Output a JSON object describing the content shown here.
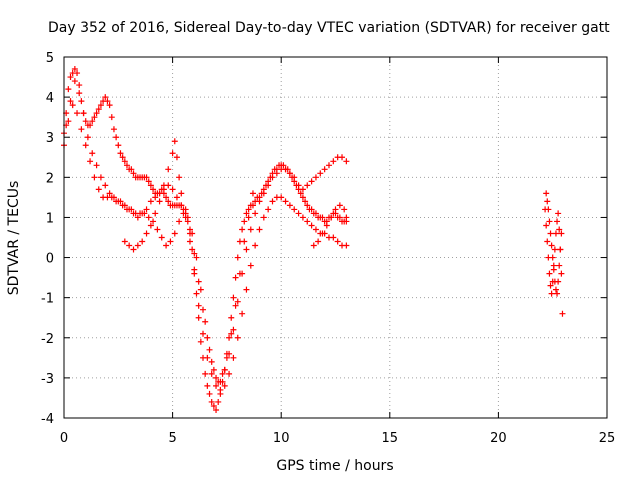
{
  "chart_data": {
    "type": "scatter",
    "title": "Day 352 of 2016, Sidereal Day-to-day VTEC variation (SDTVAR) for receiver gatt",
    "xlabel": "GPS time / hours",
    "ylabel": "SDTVAR / TECUs",
    "xlim": [
      0,
      25
    ],
    "ylim": [
      -4,
      5
    ],
    "xticks": [
      "0",
      "5",
      "10",
      "15",
      "20",
      "25"
    ],
    "yticks": [
      "-4",
      "-3",
      "-2",
      "-1",
      "0",
      "1",
      "2",
      "3",
      "4",
      "5"
    ],
    "grid": true,
    "marker": "plus",
    "color": "#ff0000",
    "series": [
      {
        "x": [
          0.0,
          0.1,
          0.2,
          0.3,
          0.4,
          0.5,
          0.6,
          0.7,
          0.8,
          0.9,
          1.0,
          1.1,
          1.2,
          1.3,
          1.4,
          1.5,
          1.6,
          1.7,
          1.8,
          1.9,
          2.0,
          2.1,
          2.2,
          2.3,
          2.4,
          2.5,
          2.6,
          2.7,
          2.8,
          2.9,
          3.0,
          3.1,
          3.2,
          3.3,
          3.4,
          3.5,
          3.6,
          3.7,
          3.8,
          3.9,
          4.0,
          4.1,
          4.2,
          4.3,
          4.4,
          4.5,
          4.6,
          4.7,
          4.8,
          4.9,
          5.0,
          5.1,
          5.2,
          5.3,
          5.4,
          5.5,
          5.6,
          5.7,
          5.8,
          5.9,
          6.0,
          6.1,
          6.2,
          6.3,
          6.4,
          6.5,
          6.6,
          6.7,
          6.8,
          6.9,
          7.0,
          7.1,
          7.2,
          7.3,
          7.4,
          7.5,
          7.6,
          7.7,
          7.8,
          7.9,
          8.0,
          8.1,
          8.2,
          8.3,
          8.4,
          8.5,
          8.6,
          8.7,
          8.8,
          8.9,
          9.0,
          9.1,
          9.2,
          9.3,
          9.4,
          9.5,
          9.6,
          9.7,
          9.8,
          9.9,
          10.0,
          10.1,
          10.2,
          10.3,
          10.4,
          10.5,
          10.6,
          10.7,
          10.8,
          10.9,
          11.0,
          11.1,
          11.2,
          11.3,
          11.4,
          11.5,
          11.6,
          11.7,
          11.8,
          11.9,
          12.0,
          12.1,
          12.2,
          12.3,
          12.4,
          12.5,
          12.6,
          12.7,
          12.8,
          12.9,
          13.0
        ],
        "y": [
          3.1,
          3.6,
          4.2,
          4.5,
          4.6,
          4.7,
          4.6,
          4.3,
          3.9,
          3.6,
          3.4,
          3.3,
          3.3,
          3.4,
          3.5,
          3.6,
          3.7,
          3.8,
          3.9,
          4.0,
          3.9,
          3.8,
          3.5,
          3.2,
          3.0,
          2.8,
          2.6,
          2.5,
          2.4,
          2.3,
          2.2,
          2.2,
          2.1,
          2.0,
          2.0,
          2.0,
          2.0,
          2.0,
          2.0,
          1.9,
          1.8,
          1.7,
          1.6,
          1.6,
          1.6,
          1.7,
          1.6,
          1.5,
          1.4,
          1.3,
          1.3,
          1.3,
          1.3,
          1.3,
          1.3,
          1.2,
          1.1,
          0.9,
          0.6,
          0.2,
          -0.3,
          -0.9,
          -1.5,
          -2.1,
          -2.5,
          -2.9,
          -3.2,
          -3.4,
          -3.6,
          -3.7,
          -3.8,
          -3.6,
          -3.4,
          -3.1,
          -2.8,
          -2.4,
          -2.0,
          -1.5,
          -1.0,
          -0.5,
          0.0,
          0.4,
          0.7,
          0.9,
          1.1,
          1.2,
          1.3,
          1.3,
          1.4,
          1.5,
          1.5,
          1.6,
          1.7,
          1.8,
          1.9,
          2.0,
          2.1,
          2.2,
          2.2,
          2.3,
          2.3,
          2.3,
          2.2,
          2.2,
          2.1,
          2.0,
          1.9,
          1.8,
          1.7,
          1.6,
          1.5,
          1.4,
          1.3,
          1.2,
          1.2,
          1.1,
          1.1,
          1.0,
          1.0,
          1.0,
          0.9,
          0.9,
          1.0,
          1.0,
          1.1,
          1.1,
          1.0,
          1.0,
          0.9,
          0.9,
          0.9
        ]
      },
      {
        "x": [
          0.0,
          0.2,
          0.4,
          0.6,
          0.8,
          1.0,
          1.2,
          1.4,
          1.6,
          1.8,
          2.0,
          2.2,
          2.4,
          2.6,
          2.8,
          3.0,
          3.2,
          3.4,
          3.6,
          3.8,
          4.0,
          4.2,
          4.4,
          4.6,
          4.8,
          5.0,
          5.2,
          5.4,
          5.6,
          5.8,
          6.0,
          6.2,
          6.4,
          6.6,
          6.8,
          7.0,
          7.2,
          7.4,
          7.6,
          7.8,
          8.0,
          8.2,
          8.4,
          8.6,
          8.8,
          9.0,
          9.2,
          9.4,
          9.6,
          9.8,
          10.0,
          10.2,
          10.4,
          10.6,
          10.8,
          11.0,
          11.2,
          11.4,
          11.6,
          11.8,
          12.0,
          12.2,
          12.4,
          12.6,
          12.8,
          13.0
        ],
        "y": [
          2.8,
          3.4,
          3.8,
          3.6,
          3.2,
          2.8,
          2.4,
          2.0,
          1.7,
          1.5,
          1.5,
          1.5,
          1.4,
          1.4,
          1.3,
          1.2,
          1.1,
          1.0,
          1.1,
          1.2,
          1.4,
          1.5,
          1.6,
          1.7,
          1.8,
          1.7,
          1.5,
          1.3,
          1.0,
          0.4,
          -0.4,
          -1.2,
          -1.9,
          -2.5,
          -2.9,
          -3.2,
          -3.3,
          -3.2,
          -2.9,
          -2.5,
          -2.0,
          -1.4,
          -0.8,
          -0.2,
          0.3,
          0.7,
          1.0,
          1.2,
          1.4,
          1.5,
          1.5,
          1.4,
          1.3,
          1.2,
          1.1,
          1.0,
          0.9,
          0.8,
          0.7,
          0.6,
          0.6,
          0.5,
          0.5,
          0.4,
          0.3,
          0.3
        ]
      },
      {
        "x": [
          2.8,
          3.0,
          3.2,
          3.4,
          3.6,
          3.8,
          4.0,
          4.2,
          4.4,
          4.6,
          4.8,
          5.0,
          5.1,
          5.2,
          5.3,
          5.4,
          5.6,
          5.8,
          6.0,
          6.2,
          6.4,
          6.6,
          6.8,
          7.0,
          7.2,
          7.4,
          7.6,
          7.8,
          8.0,
          8.2,
          8.4,
          8.6,
          8.8,
          9.0,
          9.2,
          9.4,
          9.6,
          9.8,
          10.0,
          10.2,
          10.4,
          10.6,
          10.8,
          11.0,
          11.2,
          11.4,
          11.6,
          11.8,
          12.0,
          12.2,
          12.4,
          12.6,
          12.8,
          13.0
        ],
        "y": [
          0.4,
          0.3,
          0.2,
          0.3,
          0.4,
          0.6,
          0.8,
          1.1,
          1.4,
          1.8,
          2.2,
          2.6,
          2.9,
          2.5,
          2.0,
          1.6,
          1.2,
          0.7,
          0.1,
          -0.6,
          -1.3,
          -2.0,
          -2.6,
          -3.0,
          -3.1,
          -2.8,
          -2.4,
          -1.8,
          -1.1,
          -0.4,
          0.2,
          0.7,
          1.1,
          1.4,
          1.6,
          1.8,
          2.0,
          2.1,
          2.2,
          2.2,
          2.1,
          2.0,
          1.8,
          1.7,
          1.8,
          1.9,
          2.0,
          2.1,
          2.2,
          2.3,
          2.4,
          2.5,
          2.5,
          2.4
        ]
      },
      {
        "x": [
          0.1,
          0.3,
          0.5,
          0.7,
          0.9,
          1.1,
          1.3,
          1.5,
          1.7,
          1.9,
          2.1,
          2.3,
          2.5,
          2.7,
          2.9,
          3.1,
          3.3,
          3.5,
          3.7,
          3.9,
          4.1,
          4.3,
          4.5,
          4.7,
          4.9,
          5.1,
          5.3,
          5.5,
          5.7,
          5.9,
          6.1,
          6.3,
          6.5,
          6.7,
          6.9,
          7.1,
          7.3,
          7.5,
          7.7,
          7.9,
          8.1,
          8.3,
          8.5,
          8.7
        ],
        "y": [
          3.3,
          3.9,
          4.4,
          4.1,
          3.6,
          3.0,
          2.6,
          2.3,
          2.0,
          1.8,
          1.6,
          1.5,
          1.4,
          1.3,
          1.2,
          1.2,
          1.1,
          1.1,
          1.1,
          1.0,
          0.9,
          0.7,
          0.5,
          0.3,
          0.4,
          0.6,
          0.9,
          1.1,
          1.0,
          0.6,
          0.0,
          -0.8,
          -1.6,
          -2.3,
          -2.8,
          -3.1,
          -2.9,
          -2.5,
          -1.9,
          -1.2,
          -0.4,
          0.4,
          1.0,
          1.6
        ]
      },
      {
        "x": [
          11.5,
          11.7,
          11.9,
          12.1,
          12.3,
          12.5,
          12.7,
          12.9,
          13.0
        ],
        "y": [
          0.3,
          0.4,
          0.6,
          0.8,
          1.0,
          1.2,
          1.3,
          1.2,
          1.0
        ]
      },
      {
        "x": [
          22.2,
          22.25,
          22.3,
          22.35,
          22.4,
          22.45,
          22.5,
          22.55,
          22.6,
          22.65,
          22.7,
          22.75,
          22.8,
          22.85,
          22.9
        ],
        "y": [
          1.6,
          1.4,
          1.2,
          0.9,
          0.6,
          0.3,
          0.0,
          -0.3,
          -0.6,
          -0.8,
          -0.9,
          -0.6,
          -0.2,
          0.2,
          0.6
        ]
      },
      {
        "x": [
          22.15,
          22.2,
          22.25,
          22.3,
          22.35,
          22.4,
          22.45,
          22.5,
          22.55,
          22.6,
          22.65,
          22.7,
          22.75,
          22.8,
          22.85,
          22.9,
          22.95
        ],
        "y": [
          1.2,
          0.8,
          0.4,
          0.0,
          -0.4,
          -0.7,
          -0.9,
          -0.6,
          -0.2,
          0.2,
          0.6,
          0.9,
          1.1,
          0.7,
          0.2,
          -0.4,
          -1.4
        ]
      }
    ]
  }
}
